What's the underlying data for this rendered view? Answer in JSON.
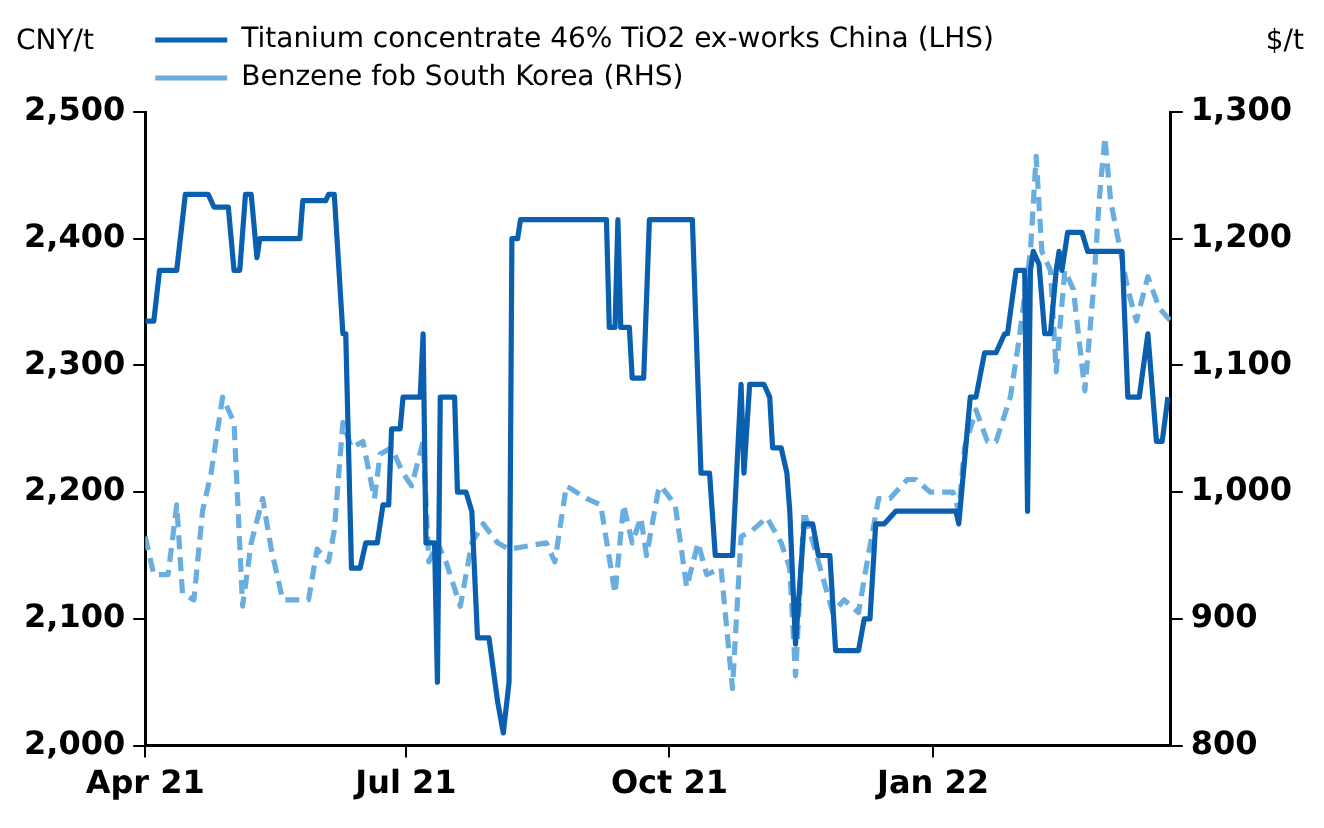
{
  "chart_data": {
    "type": "line",
    "ylabel": "CNY/t",
    "y2label": "$/t",
    "legend": "top left",
    "marker": "none",
    "xlim": [
      "2021-04-01",
      "2022-03-25"
    ],
    "xticks": [
      {
        "value": "2021-04-01",
        "label": "Apr 21"
      },
      {
        "value": "2021-07-01",
        "label": "Jul 21"
      },
      {
        "value": "2021-10-01",
        "label": "Oct 21"
      },
      {
        "value": "2022-01-01",
        "label": "Jan 22"
      }
    ],
    "ylim": [
      2000,
      2500
    ],
    "yticks": [
      {
        "value": 2000,
        "label": "2,000"
      },
      {
        "value": 2100,
        "label": "2,100"
      },
      {
        "value": 2200,
        "label": "2,200"
      },
      {
        "value": 2300,
        "label": "2,300"
      },
      {
        "value": 2400,
        "label": "2,400"
      },
      {
        "value": 2500,
        "label": "2,500"
      }
    ],
    "y2lim": [
      800,
      1300
    ],
    "y2ticks": [
      800,
      900,
      {
        "value": 1000,
        "label": "1,000"
      },
      {
        "value": 1100,
        "label": "1,100"
      },
      {
        "value": 1200,
        "label": "1,200"
      },
      {
        "value": 1300,
        "label": "1,300"
      }
    ],
    "series": [
      {
        "name": "Titanium concentrate 46% TiO2 ex-works China (LHS)",
        "color": "#0a5fae",
        "line_style": "solid",
        "x": [
          "2021-04-01",
          "2021-04-04",
          "2021-04-06",
          "2021-04-12",
          "2021-04-15",
          "2021-04-23",
          "2021-04-25",
          "2021-04-30",
          "2021-05-02",
          "2021-05-04",
          "2021-05-06",
          "2021-05-08",
          "2021-05-10",
          "2021-05-11",
          "2021-05-25",
          "2021-05-26",
          "2021-06-03",
          "2021-06-04",
          "2021-06-06",
          "2021-06-09",
          "2021-06-10",
          "2021-06-12",
          "2021-06-15",
          "2021-06-17",
          "2021-06-21",
          "2021-06-23",
          "2021-06-25",
          "2021-06-26",
          "2021-06-29",
          "2021-06-30",
          "2021-07-06",
          "2021-07-07",
          "2021-07-08",
          "2021-07-11",
          "2021-07-12",
          "2021-07-13",
          "2021-07-18",
          "2021-07-19",
          "2021-07-22",
          "2021-07-24",
          "2021-07-26",
          "2021-07-30",
          "2021-08-02",
          "2021-08-04",
          "2021-08-06",
          "2021-08-07",
          "2021-08-09",
          "2021-08-10",
          "2021-09-09",
          "2021-09-10",
          "2021-09-12",
          "2021-09-13",
          "2021-09-14",
          "2021-09-17",
          "2021-09-18",
          "2021-09-22",
          "2021-09-24",
          "2021-10-09",
          "2021-10-12",
          "2021-10-15",
          "2021-10-17",
          "2021-10-23",
          "2021-10-26",
          "2021-10-27",
          "2021-10-29",
          "2021-11-03",
          "2021-11-05",
          "2021-11-06",
          "2021-11-09",
          "2021-11-11",
          "2021-11-12",
          "2021-11-14",
          "2021-11-17",
          "2021-11-20",
          "2021-11-22",
          "2021-11-26",
          "2021-11-28",
          "2021-12-06",
          "2021-12-08",
          "2021-12-10",
          "2021-12-12",
          "2021-12-15",
          "2021-12-19",
          "2022-01-09",
          "2022-01-10",
          "2022-01-12",
          "2022-01-14",
          "2022-01-16",
          "2022-01-19",
          "2022-01-23",
          "2022-01-26",
          "2022-01-27",
          "2022-01-30",
          "2022-02-02",
          "2022-02-03",
          "2022-02-04",
          "2022-02-05",
          "2022-02-07",
          "2022-02-09",
          "2022-02-11",
          "2022-02-13",
          "2022-02-14",
          "2022-02-15",
          "2022-02-17",
          "2022-02-22",
          "2022-02-24",
          "2022-03-08",
          "2022-03-10",
          "2022-03-14",
          "2022-03-17",
          "2022-03-20",
          "2022-03-22",
          "2022-03-24"
        ],
        "values": [
          2335,
          2335,
          2375,
          2375,
          2435,
          2435,
          2425,
          2425,
          2375,
          2375,
          2435,
          2435,
          2385,
          2400,
          2400,
          2430,
          2430,
          2435,
          2435,
          2325,
          2325,
          2140,
          2140,
          2160,
          2160,
          2190,
          2190,
          2250,
          2250,
          2275,
          2275,
          2325,
          2160,
          2160,
          2050,
          2275,
          2275,
          2200,
          2200,
          2185,
          2085,
          2085,
          2035,
          2010,
          2050,
          2400,
          2400,
          2415,
          2415,
          2330,
          2330,
          2415,
          2330,
          2330,
          2290,
          2290,
          2415,
          2415,
          2215,
          2215,
          2150,
          2150,
          2285,
          2215,
          2285,
          2285,
          2275,
          2235,
          2235,
          2215,
          2185,
          2080,
          2175,
          2175,
          2150,
          2150,
          2075,
          2075,
          2100,
          2100,
          2175,
          2175,
          2185,
          2185,
          2175,
          2225,
          2275,
          2275,
          2310,
          2310,
          2325,
          2325,
          2375,
          2375,
          2185,
          2375,
          2390,
          2380,
          2325,
          2325,
          2375,
          2390,
          2375,
          2405,
          2405,
          2390,
          2390,
          2275,
          2275,
          2325,
          2240,
          2240,
          2275
        ]
      },
      {
        "name": "Benzene fob South Korea (RHS)",
        "color": "#6aaee0",
        "line_style": "dashed",
        "axis": "y2",
        "x": [
          "2021-04-01",
          "2021-04-04",
          "2021-04-09",
          "2021-04-12",
          "2021-04-14",
          "2021-04-18",
          "2021-04-21",
          "2021-04-24",
          "2021-04-28",
          "2021-05-02",
          "2021-05-05",
          "2021-05-08",
          "2021-05-12",
          "2021-05-15",
          "2021-05-19",
          "2021-05-28",
          "2021-05-31",
          "2021-06-04",
          "2021-06-06",
          "2021-06-09",
          "2021-06-12",
          "2021-06-16",
          "2021-06-20",
          "2021-06-22",
          "2021-06-26",
          "2021-06-30",
          "2021-07-03",
          "2021-07-07",
          "2021-07-09",
          "2021-07-12",
          "2021-07-15",
          "2021-07-20",
          "2021-07-24",
          "2021-07-28",
          "2021-08-02",
          "2021-08-06",
          "2021-08-19",
          "2021-08-22",
          "2021-08-26",
          "2021-09-02",
          "2021-09-07",
          "2021-09-12",
          "2021-09-15",
          "2021-09-18",
          "2021-09-21",
          "2021-09-23",
          "2021-09-27",
          "2021-09-28",
          "2021-10-03",
          "2021-10-07",
          "2021-10-11",
          "2021-10-14",
          "2021-10-19",
          "2021-10-23",
          "2021-10-26",
          "2021-10-30",
          "2021-11-04",
          "2021-11-09",
          "2021-11-12",
          "2021-11-14",
          "2021-11-17",
          "2021-11-22",
          "2021-11-27",
          "2021-12-01",
          "2021-12-06",
          "2021-12-09",
          "2021-12-13",
          "2021-12-17",
          "2021-12-23",
          "2021-12-26",
          "2021-12-31",
          "2022-01-08",
          "2022-01-10",
          "2022-01-12",
          "2022-01-16",
          "2022-01-20",
          "2022-01-23",
          "2022-01-28",
          "2022-01-31",
          "2022-02-04",
          "2022-02-06",
          "2022-02-08",
          "2022-02-11",
          "2022-02-13",
          "2022-02-16",
          "2022-02-19",
          "2022-02-23",
          "2022-02-26",
          "2022-02-28",
          "2022-03-02",
          "2022-03-04",
          "2022-03-07",
          "2022-03-10",
          "2022-03-13",
          "2022-03-17",
          "2022-03-21",
          "2022-03-25"
        ],
        "values": [
          965,
          935,
          935,
          990,
          920,
          915,
          985,
          1015,
          1075,
          1055,
          910,
          960,
          995,
          955,
          915,
          915,
          955,
          945,
          970,
          1055,
          1035,
          1040,
          995,
          1030,
          1035,
          1015,
          1005,
          1040,
          945,
          960,
          945,
          910,
          960,
          975,
          960,
          955,
          960,
          945,
          1005,
          995,
          990,
          920,
          990,
          960,
          980,
          950,
          1000,
          1005,
          990,
          925,
          960,
          935,
          940,
          845,
          965,
          970,
          980,
          960,
          940,
          855,
          985,
          945,
          905,
          915,
          905,
          945,
          995,
          995,
          1010,
          1010,
          1000,
          1000,
          985,
          1035,
          1065,
          1040,
          1040,
          1075,
          1120,
          1190,
          1265,
          1190,
          1175,
          1095,
          1175,
          1160,
          1080,
          1160,
          1230,
          1280,
          1230,
          1195,
          1160,
          1135,
          1170,
          1145,
          1135
        ]
      }
    ]
  }
}
